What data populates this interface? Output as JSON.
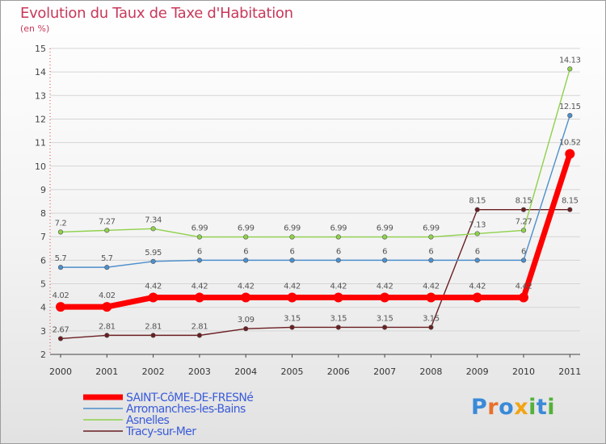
{
  "title": "Evolution du Taux de Taxe d'Habitation",
  "unit": "(en %)",
  "logo": {
    "text": "Proxiti",
    "letters": [
      "P",
      "r",
      "o",
      "x",
      "i",
      "t",
      "i"
    ],
    "colors": [
      "#3a8ad8",
      "#e8702a",
      "#3a8ad8",
      "#f2a413",
      "#53b13a",
      "#3a8ad8",
      "#53b13a"
    ]
  },
  "chart_data": {
    "type": "line",
    "categories": [
      "2000",
      "2001",
      "2002",
      "2003",
      "2004",
      "2005",
      "2006",
      "2007",
      "2008",
      "2009",
      "2010",
      "2011"
    ],
    "ylim": [
      2,
      15
    ],
    "yticks": [
      2,
      3,
      4,
      5,
      6,
      7,
      8,
      9,
      10,
      11,
      12,
      13,
      14,
      15
    ],
    "grid": true,
    "legend_position": "bottom-left",
    "series": [
      {
        "name": "Tracy-sur-Mer",
        "color": "#6b1e22",
        "width": 1.4,
        "marker": 2.8,
        "values": [
          2.67,
          2.81,
          2.81,
          2.81,
          3.09,
          3.15,
          3.15,
          3.15,
          3.15,
          8.15,
          8.15,
          8.15
        ],
        "labels": [
          "2.67",
          "2.81",
          "2.81",
          "2.81",
          "3.09",
          "3.15",
          "3.15",
          "3.15",
          "3.15",
          "8.15",
          "8.15",
          "8.15"
        ]
      },
      {
        "name": "Arromanches-les-Bains",
        "color": "#4d8fcc",
        "width": 1.4,
        "marker": 2.8,
        "values": [
          5.7,
          5.7,
          5.95,
          6,
          6,
          6,
          6,
          6,
          6,
          6,
          6,
          12.15
        ],
        "labels": [
          "5.7",
          "5.7",
          "5.95",
          "6",
          "6",
          "6",
          "6",
          "6",
          "6",
          "6",
          "6",
          "12.15"
        ]
      },
      {
        "name": "Asnelles",
        "color": "#8fd14b",
        "width": 1.4,
        "marker": 2.8,
        "values": [
          7.2,
          7.27,
          7.34,
          6.99,
          6.99,
          6.99,
          6.99,
          6.99,
          6.99,
          7.13,
          7.27,
          14.13
        ],
        "labels": [
          "7.2",
          "7.27",
          "7.34",
          "6.99",
          "6.99",
          "6.99",
          "6.99",
          "6.99",
          "6.99",
          "7.13",
          "7.27",
          "14.13"
        ]
      },
      {
        "name": "SAINT-CôME-DE-FRESNé",
        "color": "#ff0000",
        "width": 7,
        "marker": 6,
        "values": [
          4.02,
          4.02,
          4.42,
          4.42,
          4.42,
          4.42,
          4.42,
          4.42,
          4.42,
          4.42,
          4.42,
          10.52
        ],
        "labels": [
          "4.02",
          "4.02",
          "4.42",
          "4.42",
          "4.42",
          "4.42",
          "4.42",
          "4.42",
          "4.42",
          "4.42",
          "4.42",
          "10.52"
        ]
      }
    ],
    "legend_order": [
      "SAINT-CôME-DE-FRESNé",
      "Arromanches-les-Bains",
      "Asnelles",
      "Tracy-sur-Mer"
    ]
  }
}
